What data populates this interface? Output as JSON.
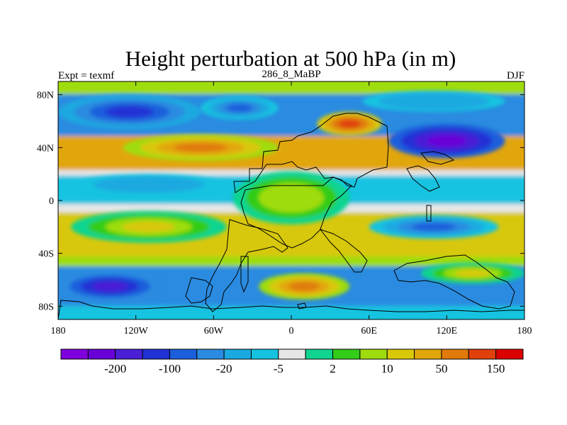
{
  "chart_data": {
    "type": "heatmap",
    "title": "Height perturbation at 500 hPa (in m)",
    "left_label": "Expt = texmf",
    "center_label": "286_8_MaBP",
    "right_label": "DJF",
    "xlim": [
      -180,
      180
    ],
    "ylim": [
      -90,
      90
    ],
    "x_ticks": [
      {
        "value": -180,
        "label": "180"
      },
      {
        "value": -120,
        "label": "120W"
      },
      {
        "value": -60,
        "label": "60W"
      },
      {
        "value": 0,
        "label": "0"
      },
      {
        "value": 60,
        "label": "60E"
      },
      {
        "value": 120,
        "label": "120E"
      },
      {
        "value": 180,
        "label": "180"
      }
    ],
    "y_ticks": [
      {
        "value": 80,
        "label": "80N"
      },
      {
        "value": 40,
        "label": "40N"
      },
      {
        "value": 0,
        "label": "0"
      },
      {
        "value": -40,
        "label": "40S"
      },
      {
        "value": -80,
        "label": "80S"
      }
    ],
    "colorbar": {
      "colors": [
        "#7f00dc",
        "#6a00d8",
        "#4a1fd6",
        "#2032d4",
        "#1b5fdc",
        "#2a8be0",
        "#1aa9e0",
        "#15c3e0",
        "#e6e6e6",
        "#11d48f",
        "#33cc19",
        "#9fdc0e",
        "#d8c808",
        "#e2a60a",
        "#e07a0a",
        "#e0400a",
        "#dc0000"
      ],
      "labels": [
        {
          "after_index": 1,
          "text": "-200"
        },
        {
          "after_index": 3,
          "text": "-100"
        },
        {
          "after_index": 5,
          "text": "-20"
        },
        {
          "after_index": 7,
          "text": "-5"
        },
        {
          "after_index": 9,
          "text": "2"
        },
        {
          "after_index": 11,
          "text": "10"
        },
        {
          "after_index": 13,
          "text": "50"
        },
        {
          "after_index": 15,
          "text": "150"
        }
      ]
    },
    "features": [
      {
        "name": "north-pacific-low",
        "lon": -125,
        "lat": 67,
        "lon_radius": 55,
        "lat_radius": 13,
        "level": 3
      },
      {
        "name": "north-atlantic-low",
        "lon": -40,
        "lat": 70,
        "lon_radius": 30,
        "lat_radius": 9,
        "level": 4
      },
      {
        "name": "arctic-trough",
        "lon": 110,
        "lat": 75,
        "lon_radius": 55,
        "lat_radius": 8,
        "level": 6
      },
      {
        "name": "mid-latitude-ridge",
        "lon": -70,
        "lat": 40,
        "lon_radius": 60,
        "lat_radius": 10,
        "level": 14
      },
      {
        "name": "eurasian-ridge",
        "lon": 45,
        "lat": 58,
        "lon_radius": 25,
        "lat_radius": 9,
        "level": 15
      },
      {
        "name": "asian-low",
        "lon": 120,
        "lat": 45,
        "lon_radius": 45,
        "lat_radius": 13,
        "level": 1
      },
      {
        "name": "north-tropical-low",
        "lon": -110,
        "lat": 12,
        "lon_radius": 55,
        "lat_radius": 8,
        "level": 6
      },
      {
        "name": "african-ridge",
        "lon": 0,
        "lat": 2,
        "lon_radius": 45,
        "lat_radius": 20,
        "level": 11
      },
      {
        "name": "indian-ocean-low",
        "lon": 110,
        "lat": -20,
        "lon_radius": 50,
        "lat_radius": 9,
        "level": 4
      },
      {
        "name": "south-pacific-ridge",
        "lon": -110,
        "lat": -20,
        "lon_radius": 60,
        "lat_radius": 12,
        "level": 12
      },
      {
        "name": "south-pacific-low",
        "lon": -140,
        "lat": -65,
        "lon_radius": 40,
        "lat_radius": 11,
        "level": 2
      },
      {
        "name": "south-atlantic-ridge",
        "lon": 10,
        "lat": -65,
        "lon_radius": 35,
        "lat_radius": 10,
        "level": 14
      },
      {
        "name": "southern-ocean-ridge",
        "lon": 140,
        "lat": -55,
        "lon_radius": 40,
        "lat_radius": 8,
        "level": 12
      }
    ]
  }
}
